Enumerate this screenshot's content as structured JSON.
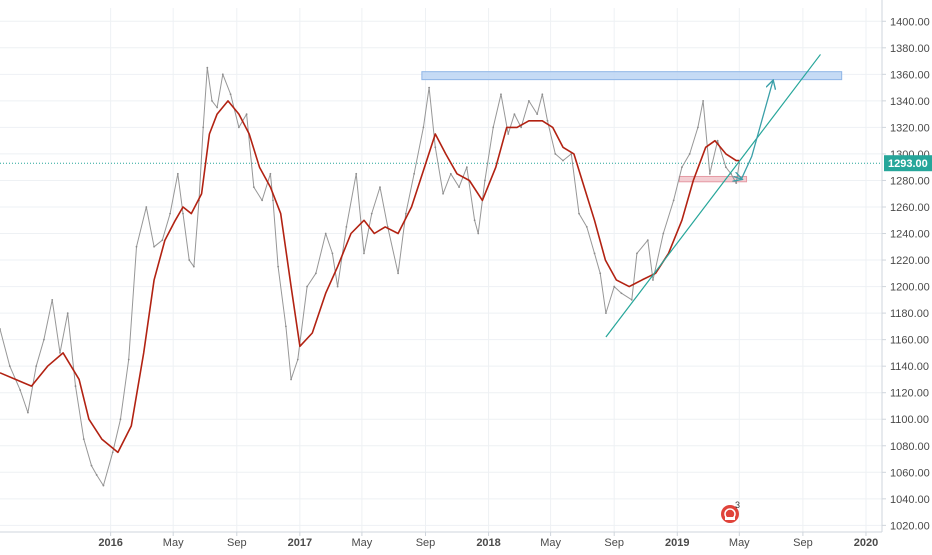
{
  "chart_data": {
    "type": "line",
    "title": "",
    "xlabel": "",
    "ylabel": "",
    "x_range": [
      "2015-06-01",
      "2020-02-01"
    ],
    "ylim": [
      1015,
      1410
    ],
    "grid": true,
    "y_ticks": [
      1020,
      1040,
      1060,
      1080,
      1100,
      1120,
      1140,
      1160,
      1180,
      1200,
      1220,
      1240,
      1260,
      1280,
      1300,
      1320,
      1340,
      1360,
      1380,
      1400
    ],
    "x_ticks": [
      {
        "label": "2016",
        "date": "2016-01-01"
      },
      {
        "label": "May",
        "date": "2016-05-01"
      },
      {
        "label": "Sep",
        "date": "2016-09-01"
      },
      {
        "label": "2017",
        "date": "2017-01-01"
      },
      {
        "label": "May",
        "date": "2017-05-01"
      },
      {
        "label": "Sep",
        "date": "2017-09-01"
      },
      {
        "label": "2018",
        "date": "2018-01-01"
      },
      {
        "label": "May",
        "date": "2018-05-01"
      },
      {
        "label": "Sep",
        "date": "2018-09-01"
      },
      {
        "label": "2019",
        "date": "2019-01-01"
      },
      {
        "label": "May",
        "date": "2019-05-01"
      },
      {
        "label": "Sep",
        "date": "2019-09-01"
      },
      {
        "label": "2020",
        "date": "2020-01-01"
      }
    ],
    "current_price": {
      "label": "1293.00",
      "value": 1293,
      "color": "#26a69a"
    },
    "series": [
      {
        "name": "",
        "color": "#8c8c8c",
        "points": [
          [
            "2015-06-01",
            1168
          ],
          [
            "2015-06-20",
            1140
          ],
          [
            "2015-07-10",
            1122
          ],
          [
            "2015-07-25",
            1105
          ],
          [
            "2015-08-10",
            1140
          ],
          [
            "2015-08-25",
            1160
          ],
          [
            "2015-09-10",
            1190
          ],
          [
            "2015-09-25",
            1150
          ],
          [
            "2015-10-10",
            1180
          ],
          [
            "2015-10-25",
            1125
          ],
          [
            "2015-11-10",
            1085
          ],
          [
            "2015-11-25",
            1065
          ],
          [
            "2015-12-05",
            1058
          ],
          [
            "2015-12-18",
            1050
          ],
          [
            "2016-01-05",
            1075
          ],
          [
            "2016-01-20",
            1100
          ],
          [
            "2016-02-05",
            1145
          ],
          [
            "2016-02-20",
            1230
          ],
          [
            "2016-03-10",
            1260
          ],
          [
            "2016-03-25",
            1230
          ],
          [
            "2016-04-10",
            1235
          ],
          [
            "2016-04-25",
            1255
          ],
          [
            "2016-05-10",
            1285
          ],
          [
            "2016-05-20",
            1255
          ],
          [
            "2016-06-01",
            1220
          ],
          [
            "2016-06-10",
            1215
          ],
          [
            "2016-06-20",
            1265
          ],
          [
            "2016-06-28",
            1320
          ],
          [
            "2016-07-06",
            1365
          ],
          [
            "2016-07-15",
            1340
          ],
          [
            "2016-07-25",
            1335
          ],
          [
            "2016-08-05",
            1360
          ],
          [
            "2016-08-20",
            1345
          ],
          [
            "2016-09-05",
            1320
          ],
          [
            "2016-09-20",
            1330
          ],
          [
            "2016-10-04",
            1275
          ],
          [
            "2016-10-20",
            1265
          ],
          [
            "2016-11-05",
            1285
          ],
          [
            "2016-11-10",
            1265
          ],
          [
            "2016-11-20",
            1215
          ],
          [
            "2016-12-05",
            1170
          ],
          [
            "2016-12-15",
            1130
          ],
          [
            "2016-12-28",
            1145
          ],
          [
            "2017-01-15",
            1200
          ],
          [
            "2017-02-01",
            1210
          ],
          [
            "2017-02-20",
            1240
          ],
          [
            "2017-03-05",
            1225
          ],
          [
            "2017-03-15",
            1200
          ],
          [
            "2017-04-01",
            1245
          ],
          [
            "2017-04-20",
            1285
          ],
          [
            "2017-05-05",
            1225
          ],
          [
            "2017-05-20",
            1255
          ],
          [
            "2017-06-05",
            1275
          ],
          [
            "2017-06-20",
            1245
          ],
          [
            "2017-07-10",
            1210
          ],
          [
            "2017-07-25",
            1255
          ],
          [
            "2017-08-10",
            1285
          ],
          [
            "2017-08-28",
            1320
          ],
          [
            "2017-09-08",
            1350
          ],
          [
            "2017-09-20",
            1305
          ],
          [
            "2017-10-05",
            1270
          ],
          [
            "2017-10-20",
            1285
          ],
          [
            "2017-11-05",
            1275
          ],
          [
            "2017-11-20",
            1290
          ],
          [
            "2017-12-05",
            1250
          ],
          [
            "2017-12-12",
            1240
          ],
          [
            "2017-12-25",
            1280
          ],
          [
            "2018-01-10",
            1320
          ],
          [
            "2018-01-25",
            1345
          ],
          [
            "2018-02-08",
            1315
          ],
          [
            "2018-02-20",
            1330
          ],
          [
            "2018-03-05",
            1320
          ],
          [
            "2018-03-20",
            1340
          ],
          [
            "2018-04-05",
            1330
          ],
          [
            "2018-04-15",
            1345
          ],
          [
            "2018-04-25",
            1325
          ],
          [
            "2018-05-10",
            1300
          ],
          [
            "2018-05-25",
            1295
          ],
          [
            "2018-06-10",
            1300
          ],
          [
            "2018-06-25",
            1255
          ],
          [
            "2018-07-10",
            1245
          ],
          [
            "2018-07-25",
            1225
          ],
          [
            "2018-08-05",
            1210
          ],
          [
            "2018-08-16",
            1180
          ],
          [
            "2018-09-01",
            1200
          ],
          [
            "2018-09-15",
            1195
          ],
          [
            "2018-10-05",
            1190
          ],
          [
            "2018-10-15",
            1225
          ],
          [
            "2018-11-05",
            1235
          ],
          [
            "2018-11-15",
            1205
          ],
          [
            "2018-12-05",
            1240
          ],
          [
            "2018-12-25",
            1265
          ],
          [
            "2019-01-10",
            1290
          ],
          [
            "2019-01-25",
            1300
          ],
          [
            "2019-02-10",
            1320
          ],
          [
            "2019-02-20",
            1340
          ],
          [
            "2019-03-05",
            1285
          ],
          [
            "2019-03-20",
            1310
          ],
          [
            "2019-04-05",
            1290
          ],
          [
            "2019-04-15",
            1285
          ],
          [
            "2019-04-25",
            1278
          ],
          [
            "2019-05-01",
            1293
          ]
        ]
      },
      {
        "name": "",
        "color": "#b22212",
        "points": [
          [
            "2015-06-01",
            1135
          ],
          [
            "2015-07-01",
            1130
          ],
          [
            "2015-08-01",
            1125
          ],
          [
            "2015-09-01",
            1140
          ],
          [
            "2015-10-01",
            1150
          ],
          [
            "2015-11-01",
            1130
          ],
          [
            "2015-11-20",
            1100
          ],
          [
            "2015-12-15",
            1085
          ],
          [
            "2016-01-15",
            1075
          ],
          [
            "2016-02-10",
            1095
          ],
          [
            "2016-03-05",
            1150
          ],
          [
            "2016-03-25",
            1205
          ],
          [
            "2016-04-15",
            1235
          ],
          [
            "2016-05-05",
            1250
          ],
          [
            "2016-05-20",
            1260
          ],
          [
            "2016-06-05",
            1255
          ],
          [
            "2016-06-25",
            1270
          ],
          [
            "2016-07-10",
            1315
          ],
          [
            "2016-07-25",
            1330
          ],
          [
            "2016-08-15",
            1340
          ],
          [
            "2016-09-05",
            1330
          ],
          [
            "2016-09-25",
            1315
          ],
          [
            "2016-10-15",
            1290
          ],
          [
            "2016-11-05",
            1275
          ],
          [
            "2016-11-25",
            1255
          ],
          [
            "2016-12-15",
            1200
          ],
          [
            "2017-01-01",
            1155
          ],
          [
            "2017-01-25",
            1165
          ],
          [
            "2017-02-20",
            1195
          ],
          [
            "2017-03-15",
            1215
          ],
          [
            "2017-04-10",
            1240
          ],
          [
            "2017-05-05",
            1250
          ],
          [
            "2017-05-25",
            1240
          ],
          [
            "2017-06-15",
            1245
          ],
          [
            "2017-07-10",
            1240
          ],
          [
            "2017-08-05",
            1260
          ],
          [
            "2017-08-30",
            1290
          ],
          [
            "2017-09-20",
            1315
          ],
          [
            "2017-10-10",
            1300
          ],
          [
            "2017-11-01",
            1285
          ],
          [
            "2017-11-25",
            1280
          ],
          [
            "2017-12-20",
            1265
          ],
          [
            "2018-01-15",
            1290
          ],
          [
            "2018-02-05",
            1320
          ],
          [
            "2018-02-25",
            1320
          ],
          [
            "2018-03-20",
            1325
          ],
          [
            "2018-04-15",
            1325
          ],
          [
            "2018-05-05",
            1320
          ],
          [
            "2018-05-25",
            1305
          ],
          [
            "2018-06-15",
            1300
          ],
          [
            "2018-07-05",
            1275
          ],
          [
            "2018-07-25",
            1250
          ],
          [
            "2018-08-15",
            1220
          ],
          [
            "2018-09-05",
            1205
          ],
          [
            "2018-09-30",
            1200
          ],
          [
            "2018-10-25",
            1205
          ],
          [
            "2018-11-20",
            1210
          ],
          [
            "2018-12-15",
            1225
          ],
          [
            "2019-01-10",
            1250
          ],
          [
            "2019-02-01",
            1280
          ],
          [
            "2019-02-25",
            1305
          ],
          [
            "2019-03-15",
            1310
          ],
          [
            "2019-04-05",
            1300
          ],
          [
            "2019-04-25",
            1295
          ],
          [
            "2019-05-01",
            1295
          ]
        ]
      }
    ],
    "annotations": {
      "resistance_zone": {
        "x_start": "2017-08-25",
        "x_end": "2019-11-15",
        "y_low": 1356,
        "y_high": 1362,
        "color": "#bcd5f3"
      },
      "support_zone": {
        "x_start": "2019-01-05",
        "x_end": "2019-05-15",
        "y_low": 1279,
        "y_high": 1283,
        "color": "#f2c9ce"
      },
      "trendline": {
        "start": [
          "2018-08-16",
          1162
        ],
        "end": [
          "2019-10-05",
          1375
        ],
        "color": "#26a69a"
      },
      "projection_path": {
        "points": [
          [
            "2019-04-20",
            1283
          ],
          [
            "2019-05-05",
            1281
          ],
          [
            "2019-05-25",
            1298
          ],
          [
            "2019-07-05",
            1355
          ]
        ],
        "color": "#3a9fa8"
      }
    }
  }
}
